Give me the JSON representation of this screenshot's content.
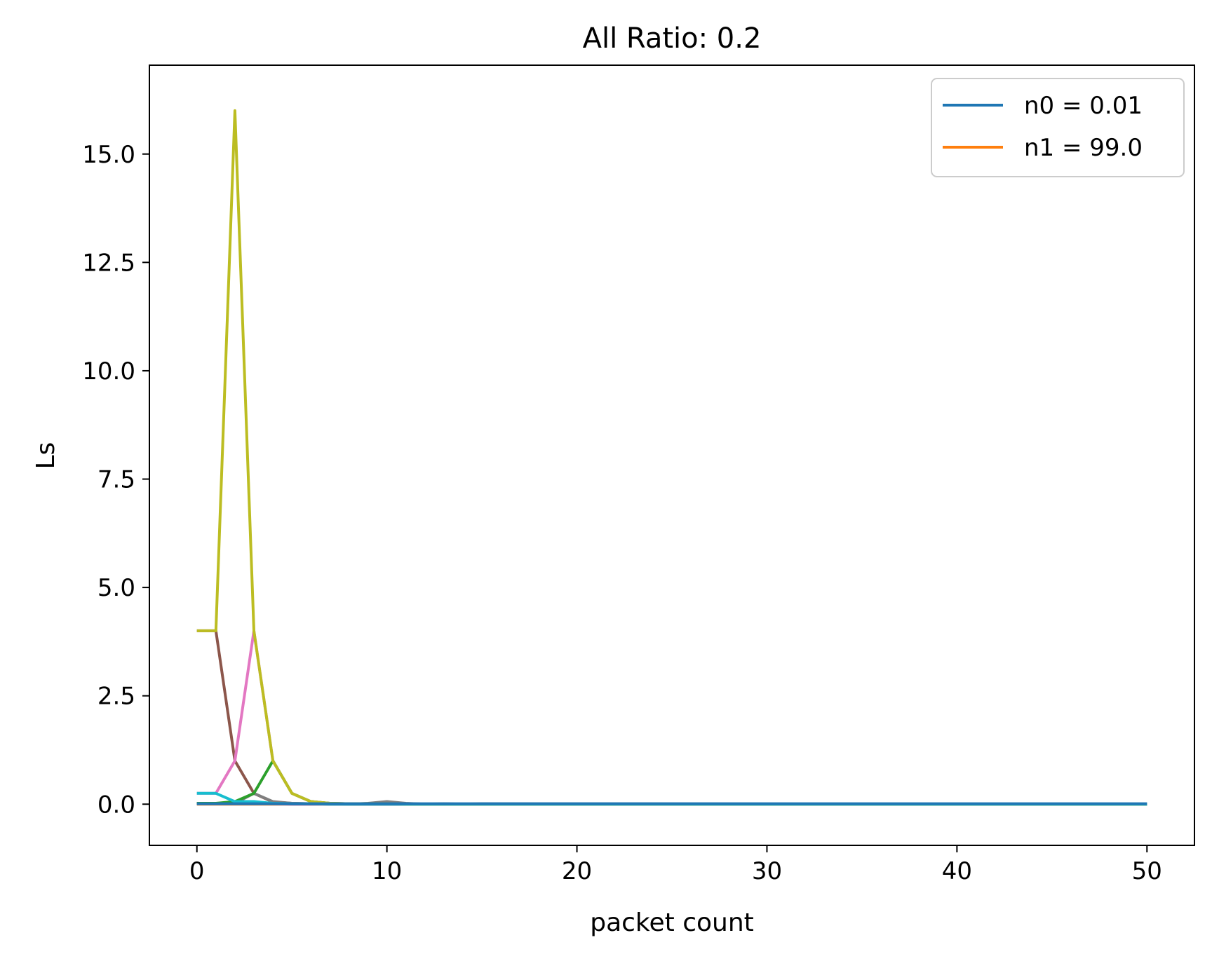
{
  "chart_data": {
    "type": "line",
    "title": "All Ratio: 0.2",
    "xlabel": "packet count",
    "ylabel": "Ls",
    "xlim": [
      -2.5,
      52.5
    ],
    "ylim": [
      -0.95,
      17.05
    ],
    "xticks": [
      0,
      10,
      20,
      30,
      40,
      50
    ],
    "xtick_labels": [
      "0",
      "10",
      "20",
      "30",
      "40",
      "50"
    ],
    "yticks": [
      0,
      2.5,
      5,
      7.5,
      10,
      12.5,
      15
    ],
    "ytick_labels": [
      "0.0",
      "2.5",
      "5.0",
      "7.5",
      "10.0",
      "12.5",
      "15.0"
    ],
    "grid": false,
    "legend": {
      "placement": "top-right",
      "entries": [
        {
          "label": "n0 = 0.01",
          "color": "#1f77b4"
        },
        {
          "label": "n1 = 99.0",
          "color": "#ff7f0e"
        }
      ]
    },
    "series": [
      {
        "color": "#ff7f0e",
        "x": [
          0,
          1,
          2,
          3,
          4,
          5,
          6,
          7,
          8,
          9,
          10,
          11,
          12,
          13,
          14,
          15,
          16,
          17,
          18,
          19,
          20,
          21,
          22,
          23,
          24,
          25,
          26,
          27,
          28,
          29,
          30,
          31,
          32,
          33,
          34,
          35,
          36,
          37,
          38,
          39,
          40,
          41,
          42,
          43,
          44,
          45,
          46,
          47,
          48,
          49,
          50
        ],
        "y": [
          0,
          0,
          0,
          0,
          0,
          0,
          0,
          0,
          0,
          0,
          0,
          0,
          0,
          0,
          0,
          0,
          0,
          0,
          0,
          0,
          0,
          0,
          0,
          0,
          0,
          0,
          0,
          0,
          0,
          0,
          0,
          0,
          0,
          0,
          0,
          0,
          0,
          0,
          0,
          0,
          0,
          0,
          0,
          0,
          0,
          0,
          0,
          0,
          0,
          0,
          0
        ]
      },
      {
        "color": "#d62728",
        "x": [
          0,
          1,
          2,
          3,
          4,
          5,
          6,
          7,
          8,
          9,
          10,
          11,
          12,
          13,
          14,
          15,
          50
        ],
        "y": [
          0.02,
          0.02,
          0.02,
          0.02,
          0.01,
          0.01,
          0.01,
          0,
          0,
          0,
          0,
          0,
          0,
          0,
          0,
          0,
          0
        ]
      },
      {
        "color": "#9467bd",
        "x": [
          0,
          1,
          2,
          3,
          4,
          5,
          6,
          7,
          8,
          9,
          10,
          11,
          12,
          13,
          14,
          15,
          50
        ],
        "y": [
          0.01,
          0.01,
          0.01,
          0.01,
          0.01,
          0,
          0,
          0,
          0,
          0,
          0,
          0,
          0,
          0,
          0,
          0,
          0
        ]
      },
      {
        "color": "#8c564b",
        "x": [
          0,
          1,
          2,
          3,
          4,
          5,
          6,
          7,
          8,
          9,
          10,
          11,
          12,
          13,
          14,
          15,
          50
        ],
        "y": [
          4,
          4,
          1,
          0.25,
          0.05,
          0.02,
          0.01,
          0.01,
          0,
          0,
          0,
          0,
          0,
          0,
          0,
          0,
          0
        ]
      },
      {
        "color": "#7f7f7f",
        "x": [
          0,
          1,
          2,
          3,
          4,
          5,
          6,
          7,
          8,
          9,
          10,
          11,
          12,
          13,
          14,
          15,
          50
        ],
        "y": [
          0.02,
          0.02,
          0.02,
          0.25,
          0.06,
          0.02,
          0.01,
          0.01,
          0,
          0.02,
          0.06,
          0.02,
          0,
          0.01,
          0,
          0.01,
          0
        ]
      },
      {
        "color": "#e377c2",
        "x": [
          0,
          1,
          2,
          3,
          4,
          5,
          6,
          7,
          8,
          9,
          10,
          11,
          12,
          13,
          14,
          15,
          50
        ],
        "y": [
          0.25,
          0.25,
          1,
          4,
          1,
          0.25,
          0.06,
          0.02,
          0.01,
          0.01,
          0.01,
          0,
          0,
          0,
          0,
          0,
          0
        ]
      },
      {
        "color": "#2ca02c",
        "x": [
          0,
          1,
          2,
          3,
          4,
          5,
          6,
          7,
          8,
          9,
          10,
          11,
          12,
          13,
          14,
          15,
          50
        ],
        "y": [
          0.02,
          0.02,
          0.06,
          0.25,
          1,
          0.25,
          0.06,
          0.02,
          0.01,
          0.01,
          0.01,
          0,
          0,
          0,
          0,
          0,
          0
        ]
      },
      {
        "color": "#bcbd22",
        "x": [
          0,
          1,
          2,
          3,
          4,
          5,
          6,
          7,
          8,
          9,
          10,
          11,
          12,
          13,
          14,
          15,
          50
        ],
        "y": [
          4,
          4,
          16,
          4,
          1,
          0.25,
          0.06,
          0.02,
          0.01,
          0.01,
          0.01,
          0,
          0,
          0,
          0,
          0,
          0
        ]
      },
      {
        "color": "#17becf",
        "x": [
          0,
          1,
          2,
          3,
          4,
          5,
          6,
          7,
          8,
          9,
          10,
          11,
          12,
          13,
          14,
          15,
          50
        ],
        "y": [
          0.25,
          0.25,
          0.06,
          0.06,
          0.02,
          0.01,
          0.01,
          0,
          0,
          0,
          0,
          0,
          0,
          0,
          0,
          0,
          0
        ]
      },
      {
        "color": "#1f77b4",
        "x": [
          0,
          1,
          2,
          3,
          4,
          5,
          6,
          7,
          8,
          9,
          10,
          11,
          12,
          13,
          14,
          15,
          16,
          17,
          18,
          19,
          20,
          21,
          22,
          23,
          24,
          25,
          26,
          27,
          28,
          29,
          30,
          31,
          32,
          33,
          34,
          35,
          36,
          37,
          38,
          39,
          40,
          41,
          42,
          43,
          44,
          45,
          46,
          47,
          48,
          49,
          50
        ],
        "y": [
          0.01,
          0.01,
          0.01,
          0.01,
          0.01,
          0.01,
          0.01,
          0.01,
          0.01,
          0.01,
          0.01,
          0.01,
          0.01,
          0.01,
          0.01,
          0.01,
          0.01,
          0.01,
          0.01,
          0.01,
          0.01,
          0.01,
          0.01,
          0.01,
          0.01,
          0.01,
          0.01,
          0.01,
          0.01,
          0.01,
          0.01,
          0.01,
          0.01,
          0.01,
          0.01,
          0.01,
          0.01,
          0.01,
          0.01,
          0.01,
          0.01,
          0.01,
          0.01,
          0.01,
          0.01,
          0.01,
          0.01,
          0.01,
          0.01,
          0.01,
          0.01
        ]
      }
    ]
  }
}
